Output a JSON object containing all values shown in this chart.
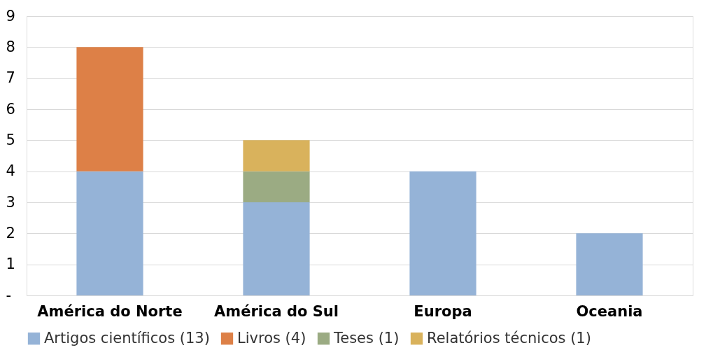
{
  "chart_data": {
    "type": "bar",
    "stacked": true,
    "categories": [
      "América do Norte",
      "América do Sul",
      "Europa",
      "Oceania"
    ],
    "series": [
      {
        "name": "Artigos científicos (13)",
        "color": "#95b3d7",
        "values": [
          4,
          3,
          4,
          2
        ]
      },
      {
        "name": "Livros (4)",
        "color": "#dd8047",
        "values": [
          4,
          null,
          null,
          null
        ]
      },
      {
        "name": "Teses (1)",
        "color": "#9bab83",
        "values": [
          null,
          1,
          null,
          null
        ]
      },
      {
        "name": "Relatórios técnicos (1)",
        "color": "#d9b25c",
        "values": [
          null,
          1,
          null,
          null
        ]
      }
    ],
    "ylim": [
      0,
      9
    ],
    "yticks": [
      {
        "value": 0,
        "label": "-"
      },
      1,
      2,
      3,
      4,
      5,
      6,
      7,
      8,
      9
    ],
    "grid": "y",
    "legend": "bottom"
  }
}
